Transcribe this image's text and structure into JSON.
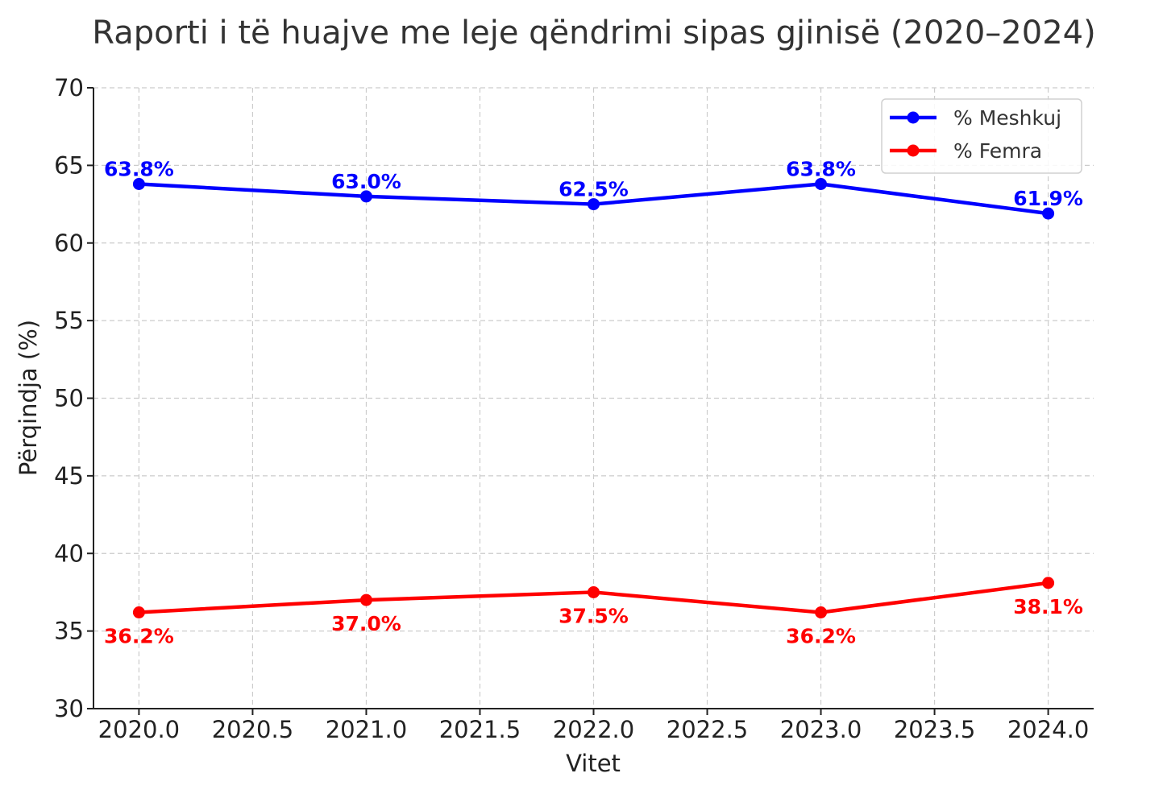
{
  "chart_data": {
    "type": "line",
    "title": "Raporti i të huajve me leje qëndrimi sipas gjinisë (2020–2024)",
    "xlabel": "Vitet",
    "ylabel": "Përqindja (%)",
    "x": [
      2020,
      2021,
      2022,
      2023,
      2024
    ],
    "xlim": [
      2019.8,
      2024.2
    ],
    "ylim": [
      30,
      70
    ],
    "xticks": [
      2020.0,
      2020.5,
      2021.0,
      2021.5,
      2022.0,
      2022.5,
      2023.0,
      2023.5,
      2024.0
    ],
    "xtick_labels": [
      "2020.0",
      "2020.5",
      "2021.0",
      "2021.5",
      "2022.0",
      "2022.5",
      "2023.0",
      "2023.5",
      "2024.0"
    ],
    "yticks": [
      30,
      35,
      40,
      45,
      50,
      55,
      60,
      65,
      70
    ],
    "ytick_labels": [
      "30",
      "35",
      "40",
      "45",
      "50",
      "55",
      "60",
      "65",
      "70"
    ],
    "grid": true,
    "legend_position": "top-right",
    "series": [
      {
        "name": "% Meshkuj",
        "color": "#0000ff",
        "values": [
          63.8,
          63.0,
          62.5,
          63.8,
          61.9
        ],
        "labels": [
          "63.8%",
          "63.0%",
          "62.5%",
          "63.8%",
          "61.9%"
        ],
        "label_position": "above"
      },
      {
        "name": "% Femra",
        "color": "#ff0000",
        "values": [
          36.2,
          37.0,
          37.5,
          36.2,
          38.1
        ],
        "labels": [
          "36.2%",
          "37.0%",
          "37.5%",
          "36.2%",
          "38.1%"
        ],
        "label_position": "below"
      }
    ]
  }
}
